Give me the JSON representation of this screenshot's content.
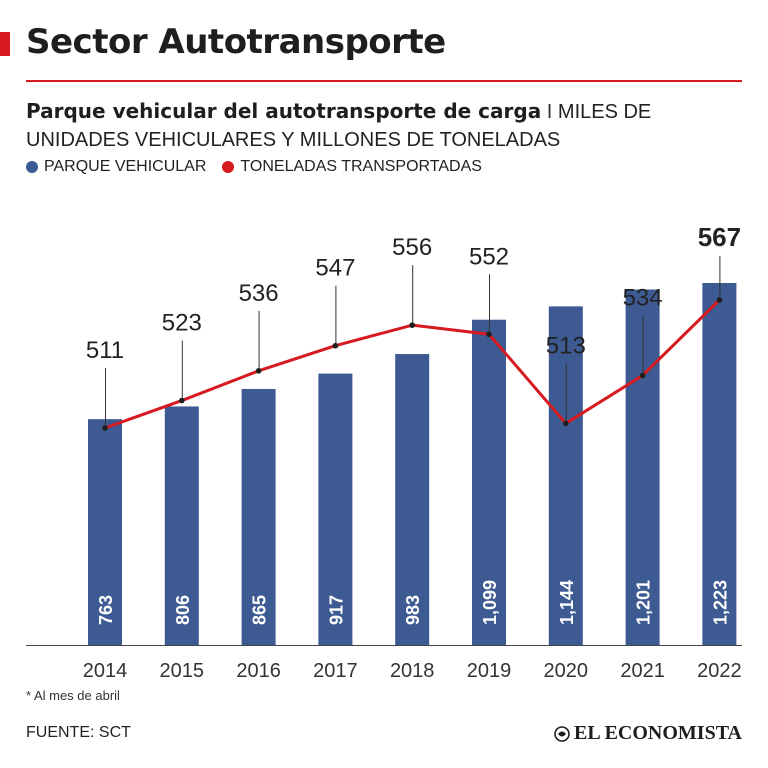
{
  "header": {
    "title": "Sector Autotransporte",
    "subtitle_bold": "Parque vehicular del autotransporte de carga",
    "subtitle_separator": "I",
    "subtitle_rest": "MILES DE UNIDADES VEHICULARES Y MILLONES DE TONELADAS"
  },
  "colors": {
    "accent": "#d71920",
    "bar": "#3d5a93",
    "line": "#d71920"
  },
  "chart_data": {
    "type": "bar",
    "categories": [
      "2014",
      "2015",
      "2016",
      "2017",
      "2018",
      "2019",
      "2020",
      "2021",
      "2022"
    ],
    "series": [
      {
        "name": "PARQUE VEHICULAR",
        "type": "bar",
        "values": [
          763,
          806,
          865,
          917,
          983,
          1099,
          1144,
          1201,
          1223
        ],
        "labels": [
          "763",
          "806",
          "865",
          "917",
          "983",
          "1,099",
          "1,144",
          "1,201",
          "1,223"
        ]
      },
      {
        "name": "TONELADAS TRANSPORTADAS",
        "type": "line",
        "values": [
          511,
          523,
          536,
          547,
          556,
          552,
          513,
          534,
          567
        ]
      }
    ],
    "legend_position": "top-left",
    "highlight_last_label": true,
    "grid": false
  },
  "footer": {
    "note": "* Al mes de abril",
    "source": "FUENTE: SCT",
    "brand": "EL ECONOMISTA",
    "brand_icon": "el-economista-logo-icon"
  }
}
